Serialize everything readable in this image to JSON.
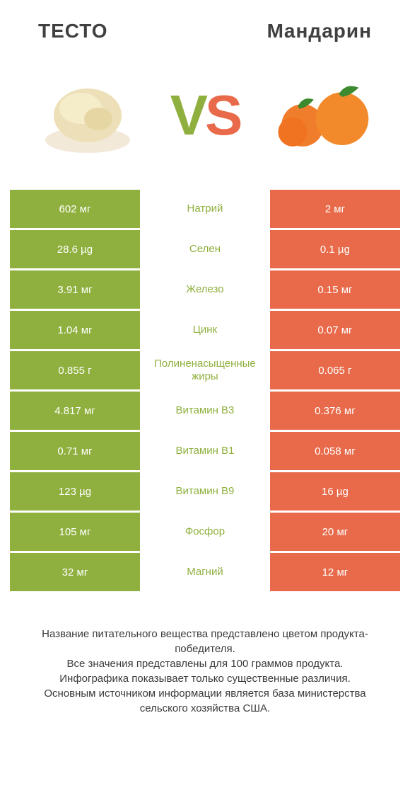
{
  "header": {
    "left_title": "ТЕСТО",
    "right_title": "Mандарин"
  },
  "vs": {
    "v": "V",
    "s": "S"
  },
  "colors": {
    "green": "#8fb03e",
    "orange": "#e86a4a",
    "text": "#404040",
    "white": "#ffffff"
  },
  "images": {
    "left_alt": "dough",
    "right_alt": "mandarin"
  },
  "rows": [
    {
      "left": "602 мг",
      "label": "Натрий",
      "right": "2 мг",
      "winner": "left"
    },
    {
      "left": "28.6 µg",
      "label": "Селен",
      "right": "0.1 µg",
      "winner": "left"
    },
    {
      "left": "3.91 мг",
      "label": "Железо",
      "right": "0.15 мг",
      "winner": "left"
    },
    {
      "left": "1.04 мг",
      "label": "Цинк",
      "right": "0.07 мг",
      "winner": "left"
    },
    {
      "left": "0.855 г",
      "label": "Полиненасыщенные жиры",
      "right": "0.065 г",
      "winner": "left"
    },
    {
      "left": "4.817 мг",
      "label": "Витамин B3",
      "right": "0.376 мг",
      "winner": "left"
    },
    {
      "left": "0.71 мг",
      "label": "Витамин B1",
      "right": "0.058 мг",
      "winner": "left"
    },
    {
      "left": "123 µg",
      "label": "Витамин B9",
      "right": "16 µg",
      "winner": "left"
    },
    {
      "left": "105 мг",
      "label": "Фосфор",
      "right": "20 мг",
      "winner": "left"
    },
    {
      "left": "32 мг",
      "label": "Магний",
      "right": "12 мг",
      "winner": "left"
    }
  ],
  "footnote": "Название питательного вещества представлено цветом продукта-победителя.\nВсе значения представлены для 100 граммов продукта.\nИнфографика показывает только существенные различия.\nОсновным источником информации является база министерства сельского хозяйства США."
}
